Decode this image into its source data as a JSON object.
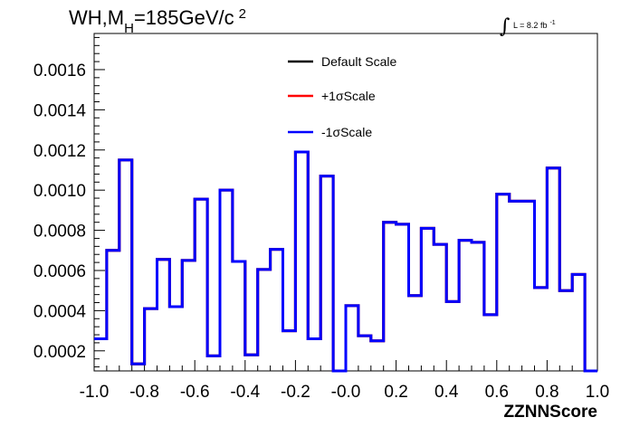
{
  "chart_data": {
    "type": "line",
    "style": "histogram-step",
    "title": {
      "prefix": "WH,M",
      "subscript": "H",
      "value": "=185GeV/c",
      "superscript": "2"
    },
    "lumi_label": {
      "integral": "∫",
      "text": "L = 8.2 fb",
      "superscript": "-1"
    },
    "xlabel": "ZZNNScore",
    "ylabel": "",
    "xlim": [
      -1.0,
      1.0
    ],
    "ylim": [
      0.0001,
      0.00178
    ],
    "x_tick_labels": [
      "-1.0",
      "-0.8",
      "-0.6",
      "-0.4",
      "-0.2",
      "-0.0",
      "0.2",
      "0.4",
      "0.6",
      "0.8",
      "1.0"
    ],
    "x_ticks": [
      -1.0,
      -0.8,
      -0.6,
      -0.4,
      -0.2,
      0.0,
      0.2,
      0.4,
      0.6,
      0.8,
      1.0
    ],
    "y_tick_labels": [
      "0.0002",
      "0.0004",
      "0.0006",
      "0.0008",
      "0.0010",
      "0.0012",
      "0.0014",
      "0.0016"
    ],
    "y_ticks": [
      0.0002,
      0.0004,
      0.0006,
      0.0008,
      0.001,
      0.0012,
      0.0014,
      0.0016
    ],
    "bin_edges": [
      -1.0,
      -0.95,
      -0.9,
      -0.85,
      -0.8,
      -0.75,
      -0.7,
      -0.65,
      -0.6,
      -0.55,
      -0.5,
      -0.45,
      -0.4,
      -0.35,
      -0.3,
      -0.25,
      -0.2,
      -0.15,
      -0.1,
      -0.05,
      0.0,
      0.05,
      0.1,
      0.15,
      0.2,
      0.25,
      0.3,
      0.35,
      0.4,
      0.45,
      0.5,
      0.55,
      0.6,
      0.65,
      0.7,
      0.75,
      0.8,
      0.85,
      0.9,
      0.95,
      1.0
    ],
    "series": [
      {
        "name": "Default Scale",
        "color": "#000000",
        "values": [
          0.00026,
          0.0007,
          0.00115,
          0.000135,
          0.00041,
          0.000655,
          0.00042,
          0.00065,
          0.000955,
          0.000175,
          0.001,
          0.000645,
          0.00018,
          0.000605,
          0.000705,
          0.0003,
          0.00119,
          0.00026,
          0.00107,
          0.0001,
          0.000425,
          0.000275,
          0.00025,
          0.00084,
          0.00083,
          0.000475,
          0.00081,
          0.00073,
          0.000445,
          0.00075,
          0.00074,
          0.00038,
          0.00098,
          0.000945,
          0.000945,
          0.000515,
          0.00111,
          0.0005,
          0.00058,
          0.0001
        ]
      },
      {
        "name": "+1σScale",
        "color": "#ff0000",
        "values": [
          0.00026,
          0.0007,
          0.00115,
          0.000135,
          0.00041,
          0.000655,
          0.00042,
          0.00065,
          0.000955,
          0.000175,
          0.001,
          0.000645,
          0.00018,
          0.000605,
          0.000705,
          0.0003,
          0.00119,
          0.00026,
          0.00107,
          0.0001,
          0.000425,
          0.000275,
          0.00025,
          0.00084,
          0.00083,
          0.000475,
          0.00081,
          0.00073,
          0.000445,
          0.00075,
          0.00074,
          0.00038,
          0.00098,
          0.000945,
          0.000945,
          0.000515,
          0.00111,
          0.0005,
          0.00058,
          0.0001
        ]
      },
      {
        "name": "-1σScale",
        "color": "#0000ff",
        "values": [
          0.00026,
          0.0007,
          0.00115,
          0.000135,
          0.00041,
          0.000655,
          0.00042,
          0.00065,
          0.000955,
          0.000175,
          0.001,
          0.000645,
          0.00018,
          0.000605,
          0.000705,
          0.0003,
          0.00119,
          0.00026,
          0.00107,
          0.0001,
          0.000425,
          0.000275,
          0.00025,
          0.00084,
          0.00083,
          0.000475,
          0.00081,
          0.00073,
          0.000445,
          0.00075,
          0.00074,
          0.00038,
          0.00098,
          0.000945,
          0.000945,
          0.000515,
          0.00111,
          0.0005,
          0.00058,
          0.0001
        ]
      }
    ],
    "legend_placement": "top-center",
    "grid": false
  }
}
